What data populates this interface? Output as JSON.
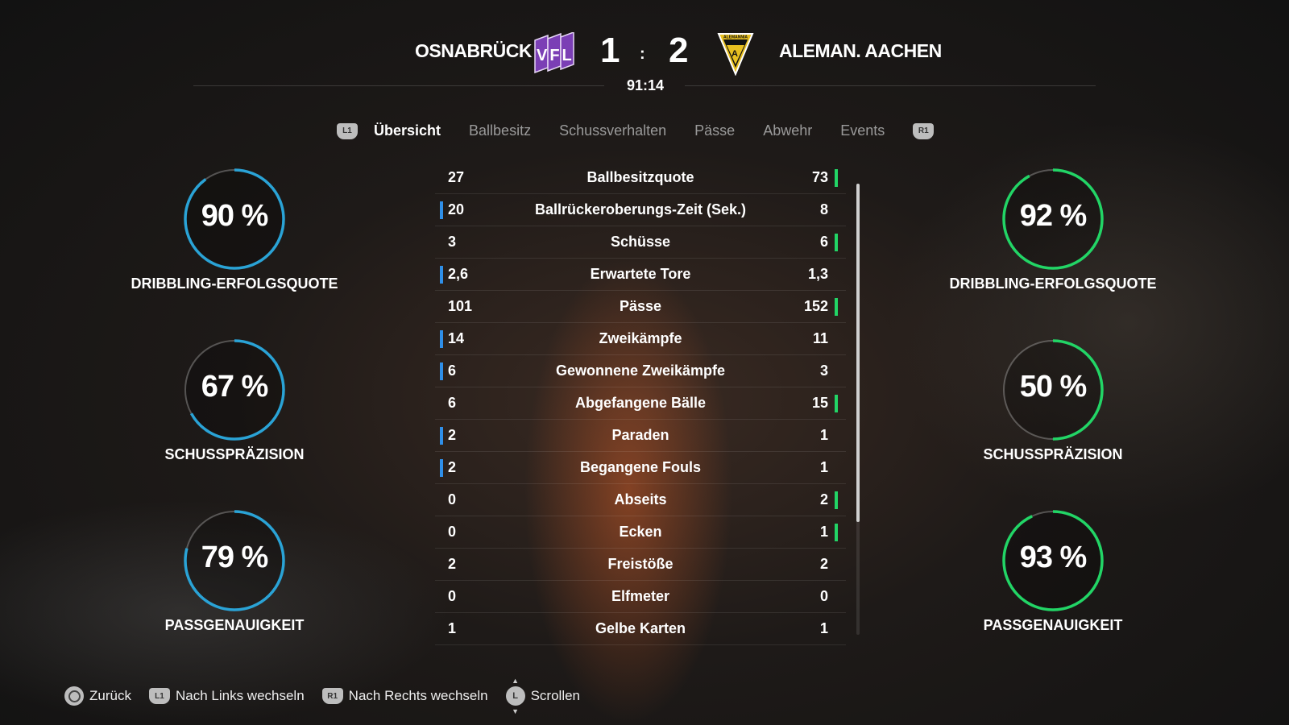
{
  "header": {
    "home_team": "OSNABRÜCK",
    "away_team": "ALEMAN. AACHEN",
    "home_score": "1",
    "separator": ":",
    "away_score": "2",
    "clock": "91:14",
    "home_logo_text": "VFL",
    "away_logo_text": "ALEMANNIA"
  },
  "tabs": {
    "left_button": "L1",
    "right_button": "R1",
    "items": [
      {
        "label": "Übersicht",
        "active": true
      },
      {
        "label": "Ballbesitz"
      },
      {
        "label": "Schussverhalten"
      },
      {
        "label": "Pässe"
      },
      {
        "label": "Abwehr"
      },
      {
        "label": "Events"
      }
    ]
  },
  "colors": {
    "home": "#2f8fe8",
    "away": "#22d566",
    "home_ring": "#2aa3d6"
  },
  "stats": [
    {
      "home": "27",
      "label": "Ballbesitzquote",
      "away": "73",
      "lead": "away"
    },
    {
      "home": "20",
      "label": "Ballrückeroberungs-Zeit (Sek.)",
      "away": "8",
      "lead": "home"
    },
    {
      "home": "3",
      "label": "Schüsse",
      "away": "6",
      "lead": "away"
    },
    {
      "home": "2,6",
      "label": "Erwartete Tore",
      "away": "1,3",
      "lead": "home"
    },
    {
      "home": "101",
      "label": "Pässe",
      "away": "152",
      "lead": "away"
    },
    {
      "home": "14",
      "label": "Zweikämpfe",
      "away": "11",
      "lead": "home"
    },
    {
      "home": "6",
      "label": "Gewonnene Zweikämpfe",
      "away": "3",
      "lead": "home"
    },
    {
      "home": "6",
      "label": "Abgefangene Bälle",
      "away": "15",
      "lead": "away"
    },
    {
      "home": "2",
      "label": "Paraden",
      "away": "1",
      "lead": "home"
    },
    {
      "home": "2",
      "label": "Begangene Fouls",
      "away": "1",
      "lead": "home"
    },
    {
      "home": "0",
      "label": "Abseits",
      "away": "2",
      "lead": "away"
    },
    {
      "home": "0",
      "label": "Ecken",
      "away": "1",
      "lead": "away"
    },
    {
      "home": "2",
      "label": "Freistöße",
      "away": "2",
      "lead": "none"
    },
    {
      "home": "0",
      "label": "Elfmeter",
      "away": "0",
      "lead": "none"
    },
    {
      "home": "1",
      "label": "Gelbe Karten",
      "away": "1",
      "lead": "none"
    }
  ],
  "home_rings": [
    {
      "value": 90,
      "text": "90 %",
      "label": "DRIBBLING-ERFOLGSQUOTE"
    },
    {
      "value": 67,
      "text": "67 %",
      "label": "SCHUSSPRÄZISION"
    },
    {
      "value": 79,
      "text": "79 %",
      "label": "PASSGENAUIGKEIT"
    }
  ],
  "away_rings": [
    {
      "value": 92,
      "text": "92 %",
      "label": "DRIBBLING-ERFOLGSQUOTE"
    },
    {
      "value": 50,
      "text": "50 %",
      "label": "SCHUSSPRÄZISION"
    },
    {
      "value": 93,
      "text": "93 %",
      "label": "PASSGENAUIGKEIT"
    }
  ],
  "footer": {
    "back": "Zurück",
    "left": "Nach Links wechseln",
    "right": "Nach Rechts wechseln",
    "scroll": "Scrollen",
    "left_btn": "L1",
    "right_btn": "R1",
    "stick": "L"
  }
}
